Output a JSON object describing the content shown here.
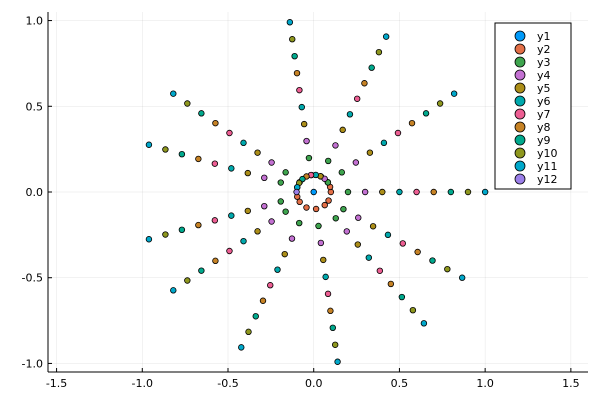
{
  "chart_data": {
    "type": "scatter",
    "title": "",
    "xlabel": "",
    "ylabel": "",
    "xlim": [
      -1.55,
      1.6
    ],
    "ylim": [
      -1.05,
      1.05
    ],
    "xticks": [
      -1.5,
      -1.0,
      -0.5,
      0.0,
      0.5,
      1.0,
      1.5
    ],
    "xtick_labels": [
      "-1.5",
      "-1.0",
      "-0.5",
      "0.0",
      "0.5",
      "1.0",
      "1.5"
    ],
    "yticks": [
      -1.0,
      -0.5,
      0.0,
      0.5,
      1.0
    ],
    "ytick_labels": [
      "-1.0",
      "-0.5",
      "0.0",
      "0.5",
      "1.0"
    ],
    "grid": true,
    "legend_position": "top-right",
    "series": [
      {
        "name": "y1",
        "color": "#009AFA",
        "x": [
          0,
          0.1,
          0.2,
          0.3,
          0.4,
          0.5,
          0.6,
          0.7,
          0.8,
          0.9,
          1.0
        ],
        "y": [
          0,
          0,
          0,
          0,
          0,
          0,
          0,
          0,
          0,
          0,
          0
        ]
      },
      {
        "name": "y2",
        "color": "#E36F47",
        "x": [
          0,
          0.0955
        ],
        "y": [
          0,
          0.0296
        ]
      },
      {
        "name": "y3",
        "color": "#3EA44E",
        "x": [
          0,
          0.083
        ],
        "y": [
          0,
          0.0558
        ]
      },
      {
        "name": "y4",
        "color": "#C371D2",
        "x": [
          0,
          0.0637
        ],
        "y": [
          0,
          0.0771
        ]
      },
      {
        "name": "y5",
        "color": "#AC8E18",
        "x": [
          0,
          0.0393
        ],
        "y": [
          0,
          0.0919
        ]
      },
      {
        "name": "y6",
        "color": "#00A9AD",
        "x": [
          0,
          0.0121
        ],
        "y": [
          0,
          0.0995
        ]
      },
      {
        "name": "y7",
        "color": "#ED5E93",
        "x": [
          0,
          -0.0158
        ],
        "y": [
          0,
          0.0988
        ]
      },
      {
        "name": "y8",
        "color": "#C68225",
        "x": [
          0,
          -0.0423
        ],
        "y": [
          0,
          0.0906
        ]
      },
      {
        "name": "y9",
        "color": "#00A98D",
        "x": [
          0,
          -0.0659
        ],
        "y": [
          0,
          0.0752
        ]
      },
      {
        "name": "y10",
        "color": "#8E971E",
        "x": [
          0,
          -0.0848
        ],
        "y": [
          0,
          0.053
        ]
      },
      {
        "name": "y11",
        "color": "#00A8CB",
        "x": [
          0,
          -0.0962
        ],
        "y": [
          0,
          0.0272
        ]
      },
      {
        "name": "y12",
        "color": "#9B7FE9",
        "x": [
          0,
          -0.1
        ],
        "y": [
          0,
          0
        ]
      }
    ],
    "rays": {
      "angles_deg": [
        0,
        35,
        65,
        98,
        145,
        164,
        196,
        215,
        245,
        278,
        310,
        330
      ],
      "radii": [
        0.1,
        0.2,
        0.3,
        0.4,
        0.5,
        0.6,
        0.7,
        0.8,
        0.9,
        1.0
      ],
      "colors": [
        "#009AFA",
        "#E36F47",
        "#3EA44E",
        "#C371D2",
        "#AC8E18",
        "#00A9AD",
        "#ED5E93",
        "#C68225",
        "#00A98D",
        "#8E971E",
        "#00A8CB",
        "#9B7FE9"
      ]
    }
  }
}
